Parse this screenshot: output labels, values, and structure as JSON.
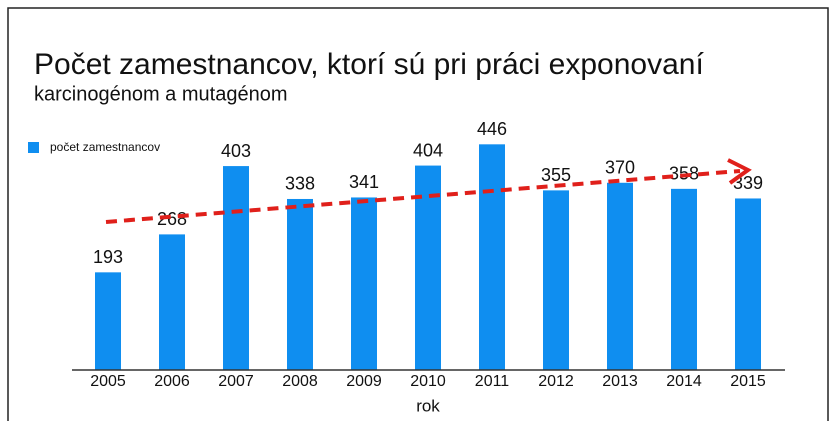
{
  "chart_data": {
    "type": "bar",
    "title": "Počet zamestnancov, ktorí sú pri práci exponovaní",
    "subtitle": "karcinogénom a mutagénom",
    "x_label": "rok",
    "categories": [
      "2005",
      "2006",
      "2007",
      "2008",
      "2009",
      "2010",
      "2011",
      "2012",
      "2013",
      "2014",
      "2015"
    ],
    "series": [
      {
        "name": "počet zamestnancov",
        "color": "#0f8ef0",
        "values": [
          193,
          268,
          403,
          338,
          341,
          404,
          446,
          355,
          370,
          358,
          339
        ]
      }
    ],
    "ylim": [
      0,
      500
    ],
    "legend": "top-left"
  }
}
